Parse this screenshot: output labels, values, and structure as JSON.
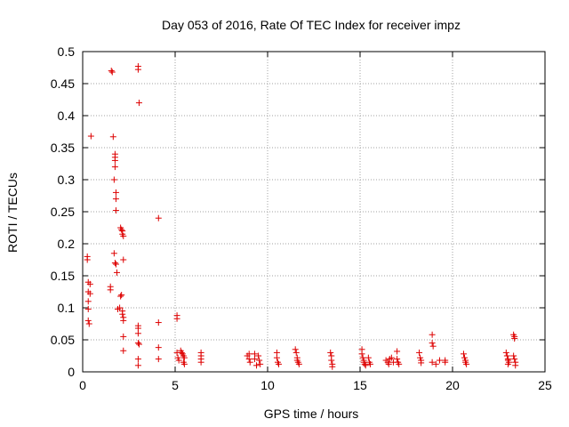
{
  "chart_data": {
    "type": "scatter",
    "title": "Day 053 of 2016, Rate Of TEC Index for receiver impz",
    "xlabel": "GPS time / hours",
    "ylabel": "ROTI / TECUs",
    "xlim": [
      0,
      25
    ],
    "ylim": [
      0,
      0.5
    ],
    "xticks": [
      0,
      5,
      10,
      15,
      20,
      25
    ],
    "yticks": [
      0,
      0.05,
      0.1,
      0.15,
      0.2,
      0.25,
      0.3,
      0.35,
      0.4,
      0.45,
      0.5
    ],
    "grid": true,
    "marker": "+",
    "color": "#dd0000",
    "series": [
      {
        "name": "ROTI",
        "points": [
          [
            0.25,
            0.18
          ],
          [
            0.25,
            0.175
          ],
          [
            0.3,
            0.14
          ],
          [
            0.3,
            0.125
          ],
          [
            0.3,
            0.11
          ],
          [
            0.3,
            0.098
          ],
          [
            0.3,
            0.08
          ],
          [
            0.35,
            0.075
          ],
          [
            0.4,
            0.137
          ],
          [
            0.4,
            0.122
          ],
          [
            0.45,
            0.368
          ],
          [
            1.5,
            0.133
          ],
          [
            1.5,
            0.128
          ],
          [
            1.55,
            0.47
          ],
          [
            1.6,
            0.468
          ],
          [
            1.65,
            0.367
          ],
          [
            1.7,
            0.3
          ],
          [
            1.75,
            0.34
          ],
          [
            1.75,
            0.335
          ],
          [
            1.75,
            0.33
          ],
          [
            1.75,
            0.32
          ],
          [
            1.8,
            0.28
          ],
          [
            1.8,
            0.27
          ],
          [
            1.8,
            0.252
          ],
          [
            1.7,
            0.185
          ],
          [
            1.75,
            0.17
          ],
          [
            1.8,
            0.168
          ],
          [
            1.85,
            0.155
          ],
          [
            1.9,
            0.098
          ],
          [
            2.0,
            0.1
          ],
          [
            2.05,
            0.225
          ],
          [
            2.1,
            0.222
          ],
          [
            2.15,
            0.22
          ],
          [
            2.15,
            0.215
          ],
          [
            2.2,
            0.212
          ],
          [
            2.2,
            0.175
          ],
          [
            2.1,
            0.12
          ],
          [
            2.05,
            0.118
          ],
          [
            2.15,
            0.095
          ],
          [
            2.15,
            0.09
          ],
          [
            2.2,
            0.085
          ],
          [
            2.2,
            0.08
          ],
          [
            2.2,
            0.055
          ],
          [
            2.2,
            0.033
          ],
          [
            3.0,
            0.477
          ],
          [
            3.0,
            0.472
          ],
          [
            3.05,
            0.42
          ],
          [
            3.0,
            0.072
          ],
          [
            3.0,
            0.068
          ],
          [
            3.0,
            0.06
          ],
          [
            3.0,
            0.045
          ],
          [
            3.05,
            0.043
          ],
          [
            3.0,
            0.02
          ],
          [
            3.0,
            0.01
          ],
          [
            4.1,
            0.24
          ],
          [
            4.1,
            0.077
          ],
          [
            4.1,
            0.038
          ],
          [
            4.1,
            0.02
          ],
          [
            5.1,
            0.088
          ],
          [
            5.1,
            0.083
          ],
          [
            5.1,
            0.03
          ],
          [
            5.15,
            0.022
          ],
          [
            5.2,
            0.018
          ],
          [
            5.3,
            0.033
          ],
          [
            5.35,
            0.03
          ],
          [
            5.4,
            0.028
          ],
          [
            5.45,
            0.025
          ],
          [
            5.5,
            0.022
          ],
          [
            5.45,
            0.015
          ],
          [
            5.5,
            0.012
          ],
          [
            6.4,
            0.03
          ],
          [
            6.4,
            0.025
          ],
          [
            6.4,
            0.02
          ],
          [
            6.4,
            0.015
          ],
          [
            8.9,
            0.025
          ],
          [
            9.0,
            0.028
          ],
          [
            9.0,
            0.02
          ],
          [
            9.05,
            0.015
          ],
          [
            9.3,
            0.028
          ],
          [
            9.3,
            0.02
          ],
          [
            9.4,
            0.01
          ],
          [
            9.5,
            0.025
          ],
          [
            9.55,
            0.018
          ],
          [
            9.6,
            0.012
          ],
          [
            10.5,
            0.03
          ],
          [
            10.5,
            0.022
          ],
          [
            10.55,
            0.015
          ],
          [
            10.6,
            0.012
          ],
          [
            11.5,
            0.035
          ],
          [
            11.55,
            0.03
          ],
          [
            11.6,
            0.022
          ],
          [
            11.6,
            0.018
          ],
          [
            11.65,
            0.015
          ],
          [
            11.7,
            0.012
          ],
          [
            13.4,
            0.03
          ],
          [
            13.45,
            0.025
          ],
          [
            13.45,
            0.018
          ],
          [
            13.5,
            0.012
          ],
          [
            13.5,
            0.008
          ],
          [
            15.1,
            0.035
          ],
          [
            15.1,
            0.028
          ],
          [
            15.15,
            0.022
          ],
          [
            15.2,
            0.018
          ],
          [
            15.2,
            0.015
          ],
          [
            15.25,
            0.012
          ],
          [
            15.3,
            0.01
          ],
          [
            15.45,
            0.022
          ],
          [
            15.5,
            0.015
          ],
          [
            15.55,
            0.012
          ],
          [
            16.4,
            0.018
          ],
          [
            16.5,
            0.015
          ],
          [
            16.55,
            0.012
          ],
          [
            16.6,
            0.02
          ],
          [
            16.7,
            0.022
          ],
          [
            16.8,
            0.015
          ],
          [
            17.0,
            0.032
          ],
          [
            17.0,
            0.02
          ],
          [
            17.05,
            0.015
          ],
          [
            17.1,
            0.012
          ],
          [
            18.2,
            0.03
          ],
          [
            18.25,
            0.022
          ],
          [
            18.3,
            0.018
          ],
          [
            18.3,
            0.014
          ],
          [
            18.9,
            0.058
          ],
          [
            18.9,
            0.045
          ],
          [
            18.95,
            0.04
          ],
          [
            18.9,
            0.015
          ],
          [
            19.1,
            0.012
          ],
          [
            19.3,
            0.018
          ],
          [
            19.6,
            0.018
          ],
          [
            19.6,
            0.015
          ],
          [
            20.6,
            0.028
          ],
          [
            20.65,
            0.022
          ],
          [
            20.7,
            0.018
          ],
          [
            20.7,
            0.015
          ],
          [
            20.75,
            0.012
          ],
          [
            22.9,
            0.03
          ],
          [
            22.95,
            0.025
          ],
          [
            23.0,
            0.02
          ],
          [
            23.0,
            0.018
          ],
          [
            23.05,
            0.015
          ],
          [
            23.0,
            0.012
          ],
          [
            23.3,
            0.058
          ],
          [
            23.35,
            0.055
          ],
          [
            23.35,
            0.052
          ],
          [
            23.3,
            0.025
          ],
          [
            23.35,
            0.02
          ],
          [
            23.4,
            0.015
          ],
          [
            23.4,
            0.01
          ]
        ]
      }
    ]
  }
}
